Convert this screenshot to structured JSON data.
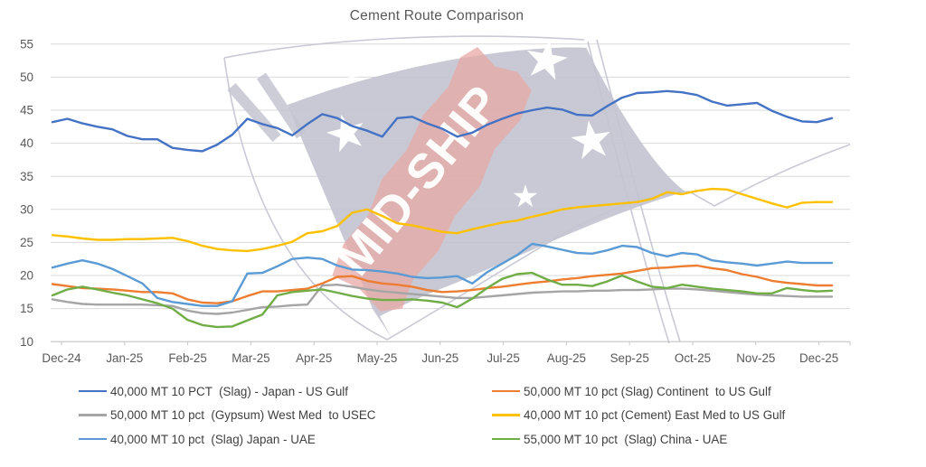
{
  "page": {
    "background": "#ffffff"
  },
  "chart_data": {
    "type": "line",
    "title": "Cement Route Comparison",
    "xlabel": "",
    "ylabel": "",
    "x_unit": "weekly points from Dec-24 to Dec-25",
    "x_tick_labels": [
      "Dec-24",
      "Jan-25",
      "Feb-25",
      "Mar-25",
      "Apr-25",
      "May-25",
      "Jun-25",
      "Jul-25",
      "Aug-25",
      "Sep-25",
      "Oct-25",
      "Nov-25",
      "Dec-25"
    ],
    "y_ticks": [
      10,
      15,
      20,
      25,
      30,
      35,
      40,
      45,
      50,
      55
    ],
    "ylim": [
      10,
      55
    ],
    "grid": true,
    "legend_position": "bottom, two columns",
    "colors": {
      "gridline": "#D9D9D9",
      "axis_line": "#C6C6C6",
      "tick_label": "#595959",
      "legend_text": "#404040",
      "watermark_flag": "#c3c4d0",
      "watermark_band": "#e8a8a6",
      "watermark_outline": "#c9cad5"
    },
    "watermark": {
      "text": "MID-SHIP"
    },
    "legend_columns": [
      [
        0,
        2,
        4
      ],
      [
        1,
        3,
        5
      ]
    ],
    "series": [
      {
        "name": "40,000 MT 10 PCT  (Slag) - Japan - US Gulf",
        "color": "#4472C4",
        "values": [
          43.2,
          43.7,
          43.0,
          42.5,
          42.1,
          41.1,
          40.6,
          40.6,
          39.3,
          39.0,
          38.8,
          39.8,
          41.3,
          43.7,
          42.9,
          42.3,
          41.2,
          42.9,
          44.4,
          43.8,
          42.6,
          41.9,
          41.0,
          43.8,
          44.0,
          43.0,
          42.2,
          41.0,
          41.6,
          42.8,
          43.7,
          44.5,
          45.0,
          45.4,
          45.1,
          44.3,
          44.2,
          45.6,
          46.9,
          47.6,
          47.7,
          47.9,
          47.7,
          47.3,
          46.3,
          45.7,
          45.9,
          46.1,
          44.9,
          44.0,
          43.3,
          43.2,
          43.8
        ]
      },
      {
        "name": "50,000 MT 10 pct (Slag) Continent  to US Gulf",
        "color": "#ED7D31",
        "values": [
          18.7,
          18.4,
          18.1,
          18.0,
          17.9,
          17.7,
          17.5,
          17.5,
          17.3,
          16.4,
          15.9,
          15.8,
          16.1,
          16.9,
          17.6,
          17.6,
          17.8,
          18.0,
          18.8,
          19.8,
          19.9,
          19.2,
          18.8,
          18.6,
          18.3,
          17.8,
          17.5,
          17.6,
          17.8,
          18.1,
          18.3,
          18.6,
          18.9,
          19.1,
          19.4,
          19.6,
          19.9,
          20.1,
          20.3,
          20.7,
          21.1,
          21.2,
          21.4,
          21.5,
          21.1,
          20.8,
          20.2,
          19.8,
          19.2,
          18.9,
          18.7,
          18.5,
          18.5
        ]
      },
      {
        "name": "50,000 MT 10 pct  (Gypsum) West Med  to USEC",
        "color": "#A5A5A5",
        "values": [
          16.4,
          16.0,
          15.7,
          15.6,
          15.6,
          15.6,
          15.6,
          15.5,
          15.4,
          14.7,
          14.3,
          14.2,
          14.4,
          14.8,
          15.2,
          15.3,
          15.5,
          15.6,
          18.5,
          18.6,
          18.3,
          17.9,
          17.6,
          17.4,
          17.2,
          17.0,
          16.8,
          16.6,
          16.6,
          16.8,
          17.0,
          17.2,
          17.4,
          17.5,
          17.6,
          17.6,
          17.7,
          17.7,
          17.8,
          17.8,
          17.9,
          18.0,
          18.0,
          17.9,
          17.7,
          17.5,
          17.3,
          17.1,
          17.0,
          16.9,
          16.8,
          16.8,
          16.8
        ]
      },
      {
        "name": "40,000 MT 10 pct (Cement) East Med to US Gulf",
        "color": "#FFC000",
        "values": [
          26.1,
          25.9,
          25.6,
          25.4,
          25.4,
          25.5,
          25.5,
          25.6,
          25.7,
          25.2,
          24.5,
          24.0,
          23.8,
          23.7,
          24.0,
          24.5,
          25.1,
          26.4,
          26.7,
          27.5,
          29.5,
          30.0,
          29.0,
          27.9,
          27.6,
          27.1,
          26.6,
          26.4,
          27.0,
          27.5,
          28.0,
          28.3,
          28.9,
          29.4,
          30.0,
          30.3,
          30.5,
          30.7,
          30.9,
          31.1,
          31.6,
          32.6,
          32.3,
          32.8,
          33.1,
          33.0,
          32.3,
          31.6,
          30.9,
          30.3,
          31.0,
          31.1,
          31.1
        ]
      },
      {
        "name": "40,000 MT 10 pct  (Slag) Japan - UAE",
        "color": "#5B9BD5",
        "values": [
          21.2,
          21.8,
          22.3,
          21.8,
          21.0,
          19.9,
          18.8,
          16.6,
          16.0,
          15.7,
          15.4,
          15.4,
          16.1,
          20.3,
          20.4,
          21.4,
          22.5,
          22.7,
          22.5,
          21.5,
          20.9,
          20.8,
          20.6,
          20.3,
          19.8,
          19.6,
          19.7,
          19.9,
          18.8,
          20.5,
          21.8,
          23.1,
          24.8,
          24.4,
          23.9,
          23.4,
          23.3,
          23.8,
          24.5,
          24.3,
          23.4,
          22.9,
          23.4,
          23.2,
          22.3,
          22.0,
          21.8,
          21.5,
          21.8,
          22.1,
          21.9,
          21.9,
          21.9
        ]
      },
      {
        "name": "55,000 MT 10 pct  (Slag) China - UAE",
        "color": "#70AD47",
        "values": [
          17.0,
          17.9,
          18.3,
          17.9,
          17.4,
          17.0,
          16.4,
          15.8,
          15.0,
          13.3,
          12.5,
          12.2,
          12.3,
          13.2,
          14.1,
          17.0,
          17.5,
          17.7,
          17.9,
          17.4,
          16.9,
          16.5,
          16.3,
          16.3,
          16.4,
          16.2,
          15.9,
          15.2,
          16.5,
          18.1,
          19.5,
          20.2,
          20.4,
          19.4,
          18.6,
          18.6,
          18.4,
          19.1,
          20.0,
          19.1,
          18.3,
          18.1,
          18.6,
          18.3,
          18.0,
          17.8,
          17.6,
          17.3,
          17.3,
          18.1,
          17.8,
          17.6,
          17.7
        ]
      }
    ]
  }
}
